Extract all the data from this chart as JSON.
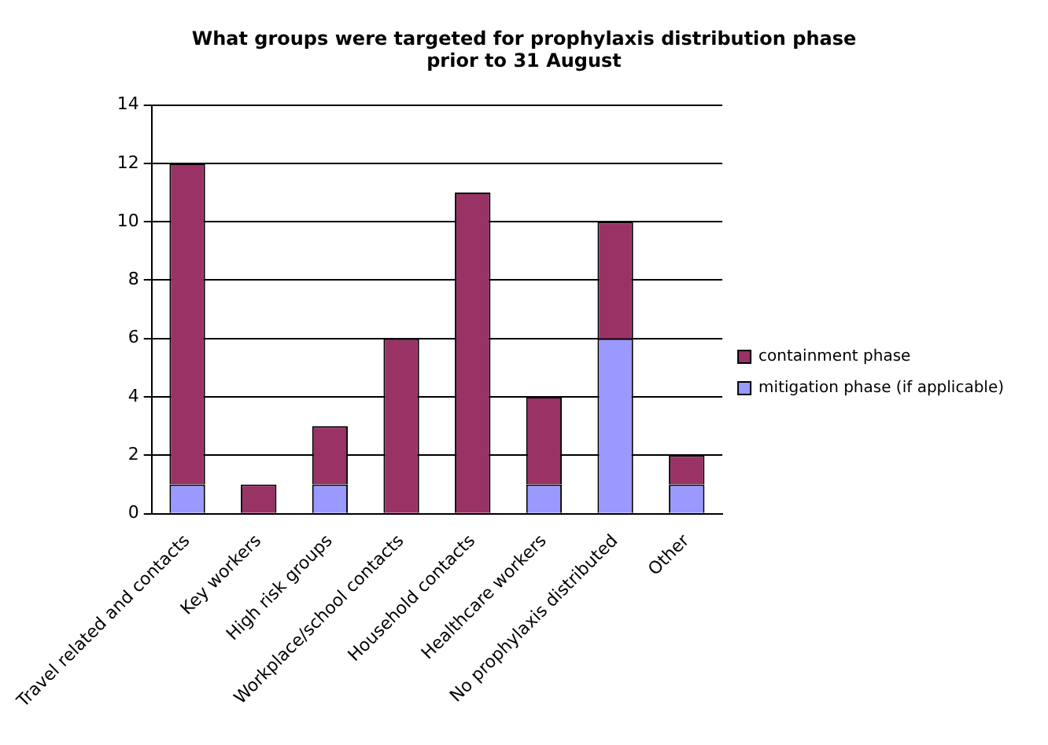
{
  "chart_data": {
    "type": "bar",
    "title": "What groups were targeted for prophylaxis distribution phase prior to 31 August",
    "categories": [
      "Travel related and contacts",
      "Key workers",
      "High risk groups",
      "Workplace/school contacts",
      "Household contacts",
      "Healthcare workers",
      "No prophylaxis distributed",
      "Other"
    ],
    "stacked": true,
    "series": [
      {
        "name": "mitigation phase (if applicable)",
        "color": "#9999ff",
        "values": [
          1,
          0,
          1,
          0,
          0,
          1,
          6,
          1
        ]
      },
      {
        "name": "containment phase",
        "color": "#993366",
        "values": [
          11,
          1,
          2,
          6,
          11,
          3,
          4,
          1
        ]
      }
    ],
    "ylim": [
      0,
      14
    ],
    "yticks": [
      0,
      2,
      4,
      6,
      8,
      10,
      12,
      14
    ],
    "grid": "y",
    "legend": "right"
  }
}
